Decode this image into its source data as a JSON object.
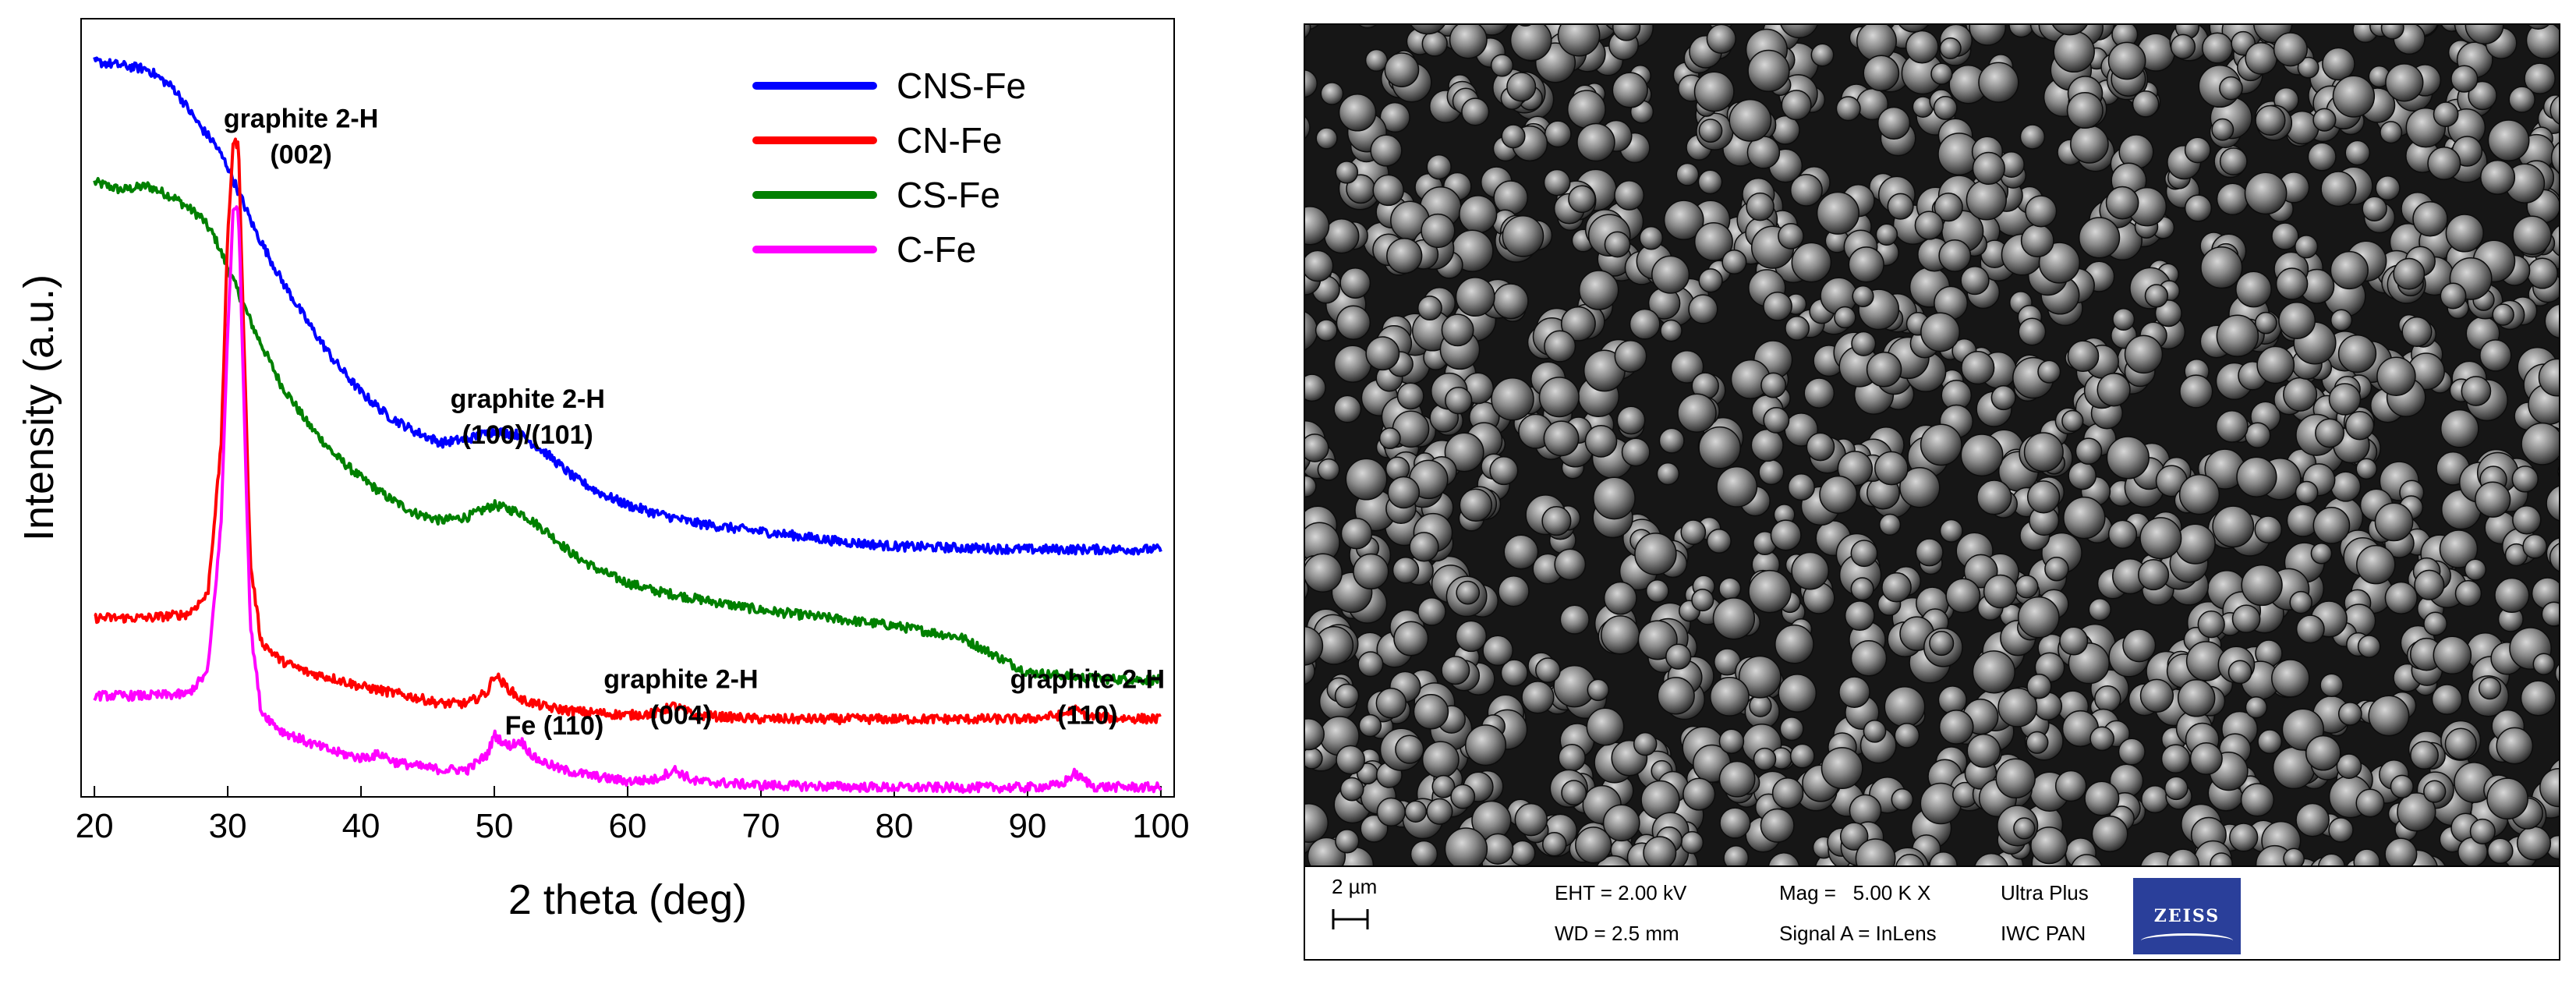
{
  "chart_data": {
    "type": "line",
    "xlabel": "2 theta (deg)",
    "ylabel": "Intensity (a.u.)",
    "xlim": [
      19,
      101
    ],
    "ylim": [
      0,
      1
    ],
    "x_ticks": [
      20,
      30,
      40,
      50,
      60,
      70,
      80,
      90,
      100
    ],
    "y_ticks_shown": false,
    "grid": false,
    "legend_position": "top-right",
    "series": [
      {
        "name": "CNS-Fe",
        "color": "#0000ff",
        "points": [
          [
            20,
            0.945
          ],
          [
            22,
            0.94
          ],
          [
            24,
            0.935
          ],
          [
            26,
            0.91
          ],
          [
            28,
            0.86
          ],
          [
            29,
            0.84
          ],
          [
            30,
            0.81
          ],
          [
            31,
            0.77
          ],
          [
            32,
            0.73
          ],
          [
            34,
            0.665
          ],
          [
            36,
            0.61
          ],
          [
            38,
            0.56
          ],
          [
            40,
            0.52
          ],
          [
            42,
            0.49
          ],
          [
            44,
            0.47
          ],
          [
            46,
            0.455
          ],
          [
            48,
            0.46
          ],
          [
            50,
            0.47
          ],
          [
            52,
            0.465
          ],
          [
            54,
            0.44
          ],
          [
            56,
            0.41
          ],
          [
            58,
            0.39
          ],
          [
            60,
            0.375
          ],
          [
            62,
            0.365
          ],
          [
            65,
            0.352
          ],
          [
            68,
            0.345
          ],
          [
            72,
            0.337
          ],
          [
            76,
            0.328
          ],
          [
            80,
            0.322
          ],
          [
            85,
            0.32
          ],
          [
            90,
            0.318
          ],
          [
            95,
            0.318
          ],
          [
            100,
            0.318
          ]
        ]
      },
      {
        "name": "CN-Fe",
        "color": "#ff0000",
        "points": [
          [
            20,
            0.23
          ],
          [
            24,
            0.23
          ],
          [
            27,
            0.235
          ],
          [
            28.5,
            0.26
          ],
          [
            29.5,
            0.45
          ],
          [
            30,
            0.72
          ],
          [
            30.4,
            0.84
          ],
          [
            30.8,
            0.84
          ],
          [
            31.2,
            0.6
          ],
          [
            31.7,
            0.3
          ],
          [
            32.5,
            0.2
          ],
          [
            34,
            0.175
          ],
          [
            36,
            0.16
          ],
          [
            38,
            0.152
          ],
          [
            40,
            0.142
          ],
          [
            42,
            0.135
          ],
          [
            44,
            0.128
          ],
          [
            46,
            0.12
          ],
          [
            48,
            0.12
          ],
          [
            49.5,
            0.135
          ],
          [
            50,
            0.158
          ],
          [
            51,
            0.14
          ],
          [
            52,
            0.125
          ],
          [
            54,
            0.115
          ],
          [
            56,
            0.11
          ],
          [
            60,
            0.105
          ],
          [
            62,
            0.107
          ],
          [
            63.5,
            0.117
          ],
          [
            65,
            0.105
          ],
          [
            70,
            0.1
          ],
          [
            80,
            0.1
          ],
          [
            90,
            0.1
          ],
          [
            92.5,
            0.105
          ],
          [
            93.5,
            0.112
          ],
          [
            95,
            0.102
          ],
          [
            100,
            0.1
          ]
        ]
      },
      {
        "name": "CS-Fe",
        "color": "#008000",
        "points": [
          [
            20,
            0.79
          ],
          [
            22,
            0.78
          ],
          [
            24,
            0.785
          ],
          [
            26,
            0.77
          ],
          [
            28,
            0.745
          ],
          [
            29,
            0.72
          ],
          [
            30,
            0.68
          ],
          [
            31,
            0.64
          ],
          [
            32,
            0.6
          ],
          [
            34,
            0.53
          ],
          [
            36,
            0.48
          ],
          [
            38,
            0.44
          ],
          [
            40,
            0.41
          ],
          [
            42,
            0.385
          ],
          [
            44,
            0.365
          ],
          [
            46,
            0.355
          ],
          [
            48,
            0.36
          ],
          [
            50,
            0.375
          ],
          [
            52,
            0.365
          ],
          [
            54,
            0.34
          ],
          [
            56,
            0.31
          ],
          [
            58,
            0.29
          ],
          [
            60,
            0.275
          ],
          [
            62,
            0.265
          ],
          [
            65,
            0.255
          ],
          [
            70,
            0.24
          ],
          [
            75,
            0.23
          ],
          [
            80,
            0.22
          ],
          [
            85,
            0.205
          ],
          [
            90,
            0.16
          ],
          [
            95,
            0.152
          ],
          [
            100,
            0.15
          ]
        ]
      },
      {
        "name": "C-Fe",
        "color": "#ff00ff",
        "points": [
          [
            20,
            0.13
          ],
          [
            24,
            0.13
          ],
          [
            27,
            0.132
          ],
          [
            28.5,
            0.16
          ],
          [
            29.5,
            0.35
          ],
          [
            30,
            0.6
          ],
          [
            30.4,
            0.75
          ],
          [
            30.8,
            0.76
          ],
          [
            31.2,
            0.52
          ],
          [
            31.7,
            0.22
          ],
          [
            32.5,
            0.11
          ],
          [
            34,
            0.085
          ],
          [
            36,
            0.07
          ],
          [
            38,
            0.058
          ],
          [
            40,
            0.05
          ],
          [
            41.5,
            0.055
          ],
          [
            42.5,
            0.045
          ],
          [
            44,
            0.04
          ],
          [
            46,
            0.035
          ],
          [
            48,
            0.035
          ],
          [
            49.5,
            0.055
          ],
          [
            50,
            0.08
          ],
          [
            51,
            0.065
          ],
          [
            52,
            0.072
          ],
          [
            53,
            0.05
          ],
          [
            55,
            0.035
          ],
          [
            58,
            0.025
          ],
          [
            60,
            0.02
          ],
          [
            62,
            0.022
          ],
          [
            63.5,
            0.035
          ],
          [
            65,
            0.02
          ],
          [
            70,
            0.015
          ],
          [
            80,
            0.012
          ],
          [
            90,
            0.012
          ],
          [
            92.5,
            0.015
          ],
          [
            93.5,
            0.03
          ],
          [
            95,
            0.013
          ],
          [
            100,
            0.012
          ]
        ]
      }
    ],
    "annotations": [
      {
        "lines": [
          "graphite 2-H",
          "(002)"
        ],
        "x": 35.5,
        "y": 0.86
      },
      {
        "lines": [
          "graphite 2-H",
          "(100)/(101)"
        ],
        "x": 52.5,
        "y": 0.5
      },
      {
        "lines": [
          "graphite 2-H",
          "(004)"
        ],
        "x": 64,
        "y": 0.14
      },
      {
        "lines": [
          "Fe (110)"
        ],
        "x": 54.5,
        "y": 0.08
      },
      {
        "lines": [
          "graphite 2-H",
          "(110)"
        ],
        "x": 94.5,
        "y": 0.14
      }
    ]
  },
  "sem": {
    "scale_label": "2 µm",
    "eht": "EHT = 2.00 kV",
    "wd": "WD = 2.5 mm",
    "mag": "Mag =   5.00 K X",
    "signal": "Signal A = InLens",
    "instrument": "Ultra Plus",
    "lab": "IWC PAN",
    "logo_text": "ZEISS"
  }
}
